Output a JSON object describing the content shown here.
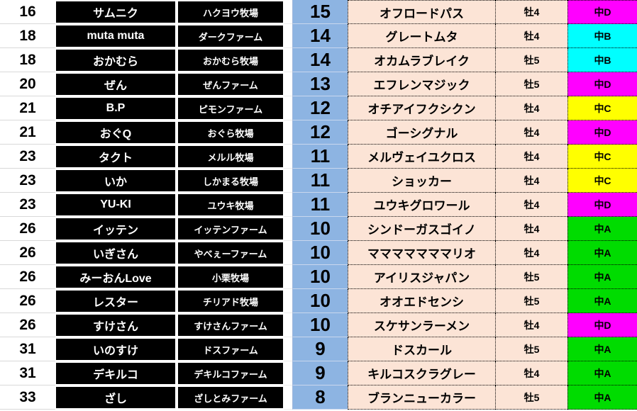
{
  "colors": {
    "points_column_bg": "#8DB4E2",
    "row_bg_peach": "#FCE4D6",
    "owner_block_bg": "#000000",
    "owner_block_text": "#FFFFFF",
    "grade_a_green": "#00DC00",
    "grade_b_cyan": "#00FFFF",
    "grade_c_yellow": "#FFFF00",
    "grade_d_magenta": "#FF00FF"
  },
  "table": {
    "columns": [
      "rank",
      "owner",
      "farm",
      "points",
      "horse",
      "sex_age",
      "grade"
    ],
    "rows": [
      {
        "rank": "16",
        "owner": "サムニク",
        "farm": "ハクヨウ牧場",
        "points": "15",
        "horse": "オフロードパス",
        "sex_age": "牡4",
        "grade": "中D",
        "grade_color": "#FF00FF"
      },
      {
        "rank": "18",
        "owner": "muta muta",
        "farm": "ダークファーム",
        "points": "14",
        "horse": "グレートムタ",
        "sex_age": "牡4",
        "grade": "中B",
        "grade_color": "#00FFFF"
      },
      {
        "rank": "18",
        "owner": "おかむら",
        "farm": "おかむら牧場",
        "points": "14",
        "horse": "オカムラブレイク",
        "sex_age": "牡5",
        "grade": "中B",
        "grade_color": "#00FFFF"
      },
      {
        "rank": "20",
        "owner": "ぜん",
        "farm": "ぜんファーム",
        "points": "13",
        "horse": "エフレンマジック",
        "sex_age": "牡5",
        "grade": "中D",
        "grade_color": "#FF00FF"
      },
      {
        "rank": "21",
        "owner": "B.P",
        "farm": "ピモンファーム",
        "points": "12",
        "horse": "オチアイフクシクン",
        "sex_age": "牡4",
        "grade": "中C",
        "grade_color": "#FFFF00"
      },
      {
        "rank": "21",
        "owner": "おぐQ",
        "farm": "おぐら牧場",
        "points": "12",
        "horse": "ゴーシグナル",
        "sex_age": "牡4",
        "grade": "中D",
        "grade_color": "#FF00FF"
      },
      {
        "rank": "23",
        "owner": "タクト",
        "farm": "メルル牧場",
        "points": "11",
        "horse": "メルヴェイユクロス",
        "sex_age": "牡4",
        "grade": "中C",
        "grade_color": "#FFFF00"
      },
      {
        "rank": "23",
        "owner": "いか",
        "farm": "しかまる牧場",
        "points": "11",
        "horse": "ショッカー",
        "sex_age": "牡4",
        "grade": "中C",
        "grade_color": "#FFFF00"
      },
      {
        "rank": "23",
        "owner": "YU-KI",
        "farm": "ユウキ牧場",
        "points": "11",
        "horse": "ユウキグロワール",
        "sex_age": "牡4",
        "grade": "中D",
        "grade_color": "#FF00FF"
      },
      {
        "rank": "26",
        "owner": "イッテン",
        "farm": "イッテンファーム",
        "points": "10",
        "horse": "シンドーガスゴイノ",
        "sex_age": "牡4",
        "grade": "中A",
        "grade_color": "#00DC00"
      },
      {
        "rank": "26",
        "owner": "いぎさん",
        "farm": "やべぇーファーム",
        "points": "10",
        "horse": "マママママママリオ",
        "sex_age": "牡4",
        "grade": "中A",
        "grade_color": "#00DC00"
      },
      {
        "rank": "26",
        "owner": "みーおんLove",
        "farm": "小栗牧場",
        "points": "10",
        "horse": "アイリスジャパン",
        "sex_age": "牡5",
        "grade": "中A",
        "grade_color": "#00DC00"
      },
      {
        "rank": "26",
        "owner": "レスター",
        "farm": "チリアド牧場",
        "points": "10",
        "horse": "オオエドセンシ",
        "sex_age": "牡5",
        "grade": "中A",
        "grade_color": "#00DC00"
      },
      {
        "rank": "26",
        "owner": "すけさん",
        "farm": "すけさんファーム",
        "points": "10",
        "horse": "スケサンラーメン",
        "sex_age": "牡4",
        "grade": "中D",
        "grade_color": "#FF00FF"
      },
      {
        "rank": "31",
        "owner": "いのすけ",
        "farm": "ドスファーム",
        "points": "9",
        "horse": "ドスカール",
        "sex_age": "牡5",
        "grade": "中A",
        "grade_color": "#00DC00"
      },
      {
        "rank": "31",
        "owner": "デキルコ",
        "farm": "デキルコファーム",
        "points": "9",
        "horse": "キルコスクラグレー",
        "sex_age": "牡4",
        "grade": "中A",
        "grade_color": "#00DC00"
      },
      {
        "rank": "33",
        "owner": "ざし",
        "farm": "ざしとみファーム",
        "points": "8",
        "horse": "ブランニューカラー",
        "sex_age": "牡5",
        "grade": "中A",
        "grade_color": "#00DC00"
      }
    ]
  }
}
